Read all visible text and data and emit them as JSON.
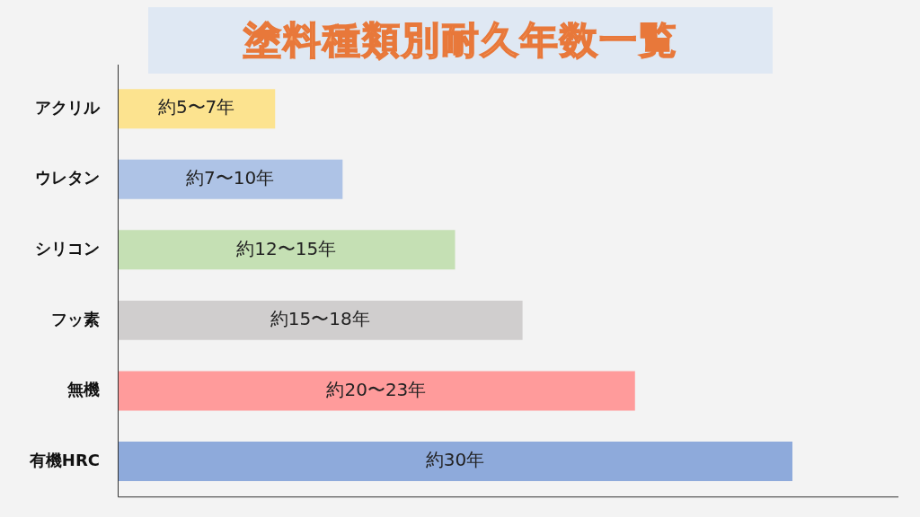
{
  "chart_data": {
    "type": "bar",
    "title": "塗料種類別耐久年数一覧",
    "orientation": "horizontal",
    "categories": [
      "アクリル",
      "ウレタン",
      "シリコン",
      "フッ素",
      "無機",
      "有機HRC"
    ],
    "values": [
      7,
      10,
      15,
      18,
      23,
      30
    ],
    "xlim": [
      0,
      30
    ],
    "tick_labels": "y",
    "colors": [
      "#fce38f",
      "#aec3e6",
      "#c5e0b4",
      "#d0cece",
      "#ff9b9b",
      "#8eaadb"
    ],
    "value_labels": [
      "約5〜7年",
      "約7〜10年",
      "約12〜15年",
      "約15〜18年",
      "約20〜23年",
      "約30年"
    ],
    "legend": false
  }
}
